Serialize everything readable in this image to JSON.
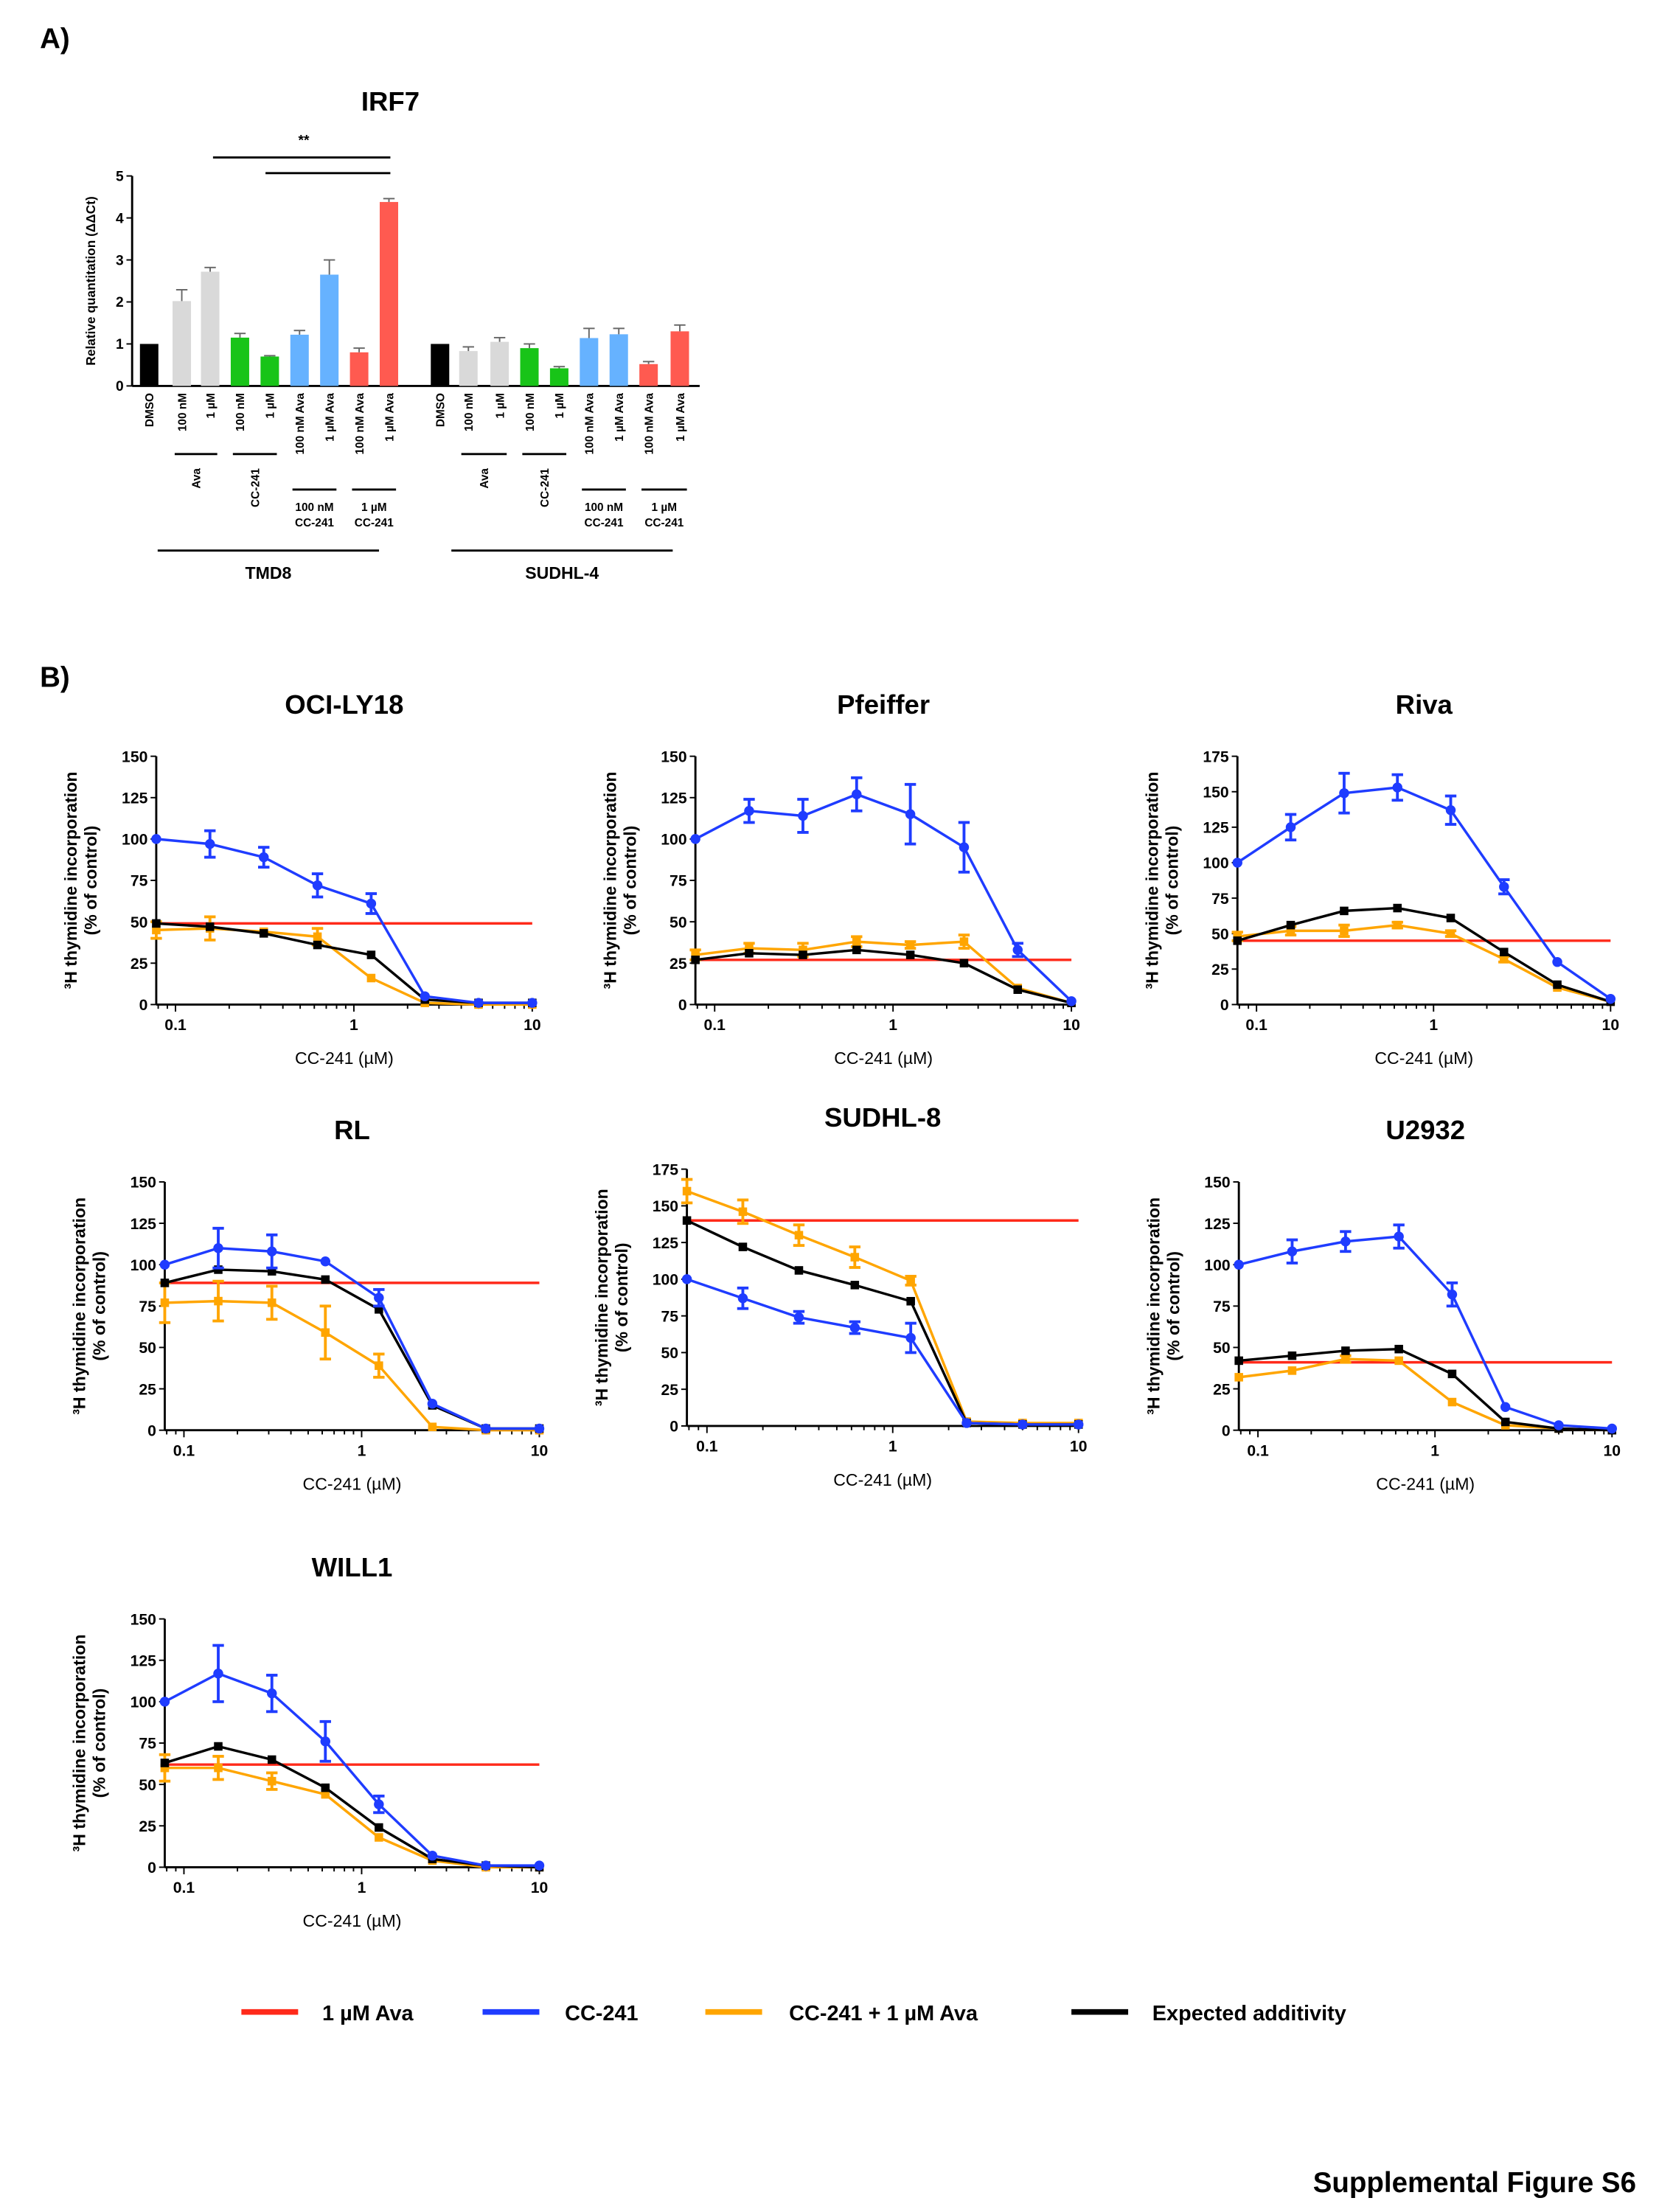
{
  "panel_labels": {
    "a": "A)",
    "b": "B)"
  },
  "footer": "Supplemental Figure S6",
  "legend": [
    {
      "label": "1 µM Ava",
      "color": "#ff2a1a"
    },
    {
      "label": "CC-241",
      "color": "#1f3cff"
    },
    {
      "label": "CC-241 + 1 µM Ava",
      "color": "#ffa500"
    },
    {
      "label": "Expected additivity",
      "color": "#000000"
    }
  ],
  "chart_data": [
    {
      "type": "bar",
      "title": "IRF7",
      "ylabel": "Relative quantitation (ΔΔCt)",
      "ylim": [
        0,
        5
      ],
      "yticks": [
        0,
        1,
        2,
        3,
        4,
        5
      ],
      "significance": "**",
      "groups": [
        {
          "name": "TMD8",
          "bars": [
            {
              "label": "DMSO",
              "value": 1.0,
              "error": 0,
              "color": "#000000"
            },
            {
              "label": "100 nM",
              "value": 2.02,
              "error": 0.27,
              "color": "#d9d9d9"
            },
            {
              "label": "1 µM",
              "value": 2.72,
              "error": 0.1,
              "color": "#d9d9d9"
            },
            {
              "label": "100 nM",
              "value": 1.15,
              "error": 0.1,
              "color": "#18c418"
            },
            {
              "label": "1 µM",
              "value": 0.7,
              "error": 0.02,
              "color": "#18c418"
            },
            {
              "label": "100 nM Ava",
              "value": 1.22,
              "error": 0.1,
              "color": "#66b2ff"
            },
            {
              "label": "1 µM Ava",
              "value": 2.65,
              "error": 0.35,
              "color": "#66b2ff"
            },
            {
              "label": "100 nM Ava",
              "value": 0.8,
              "error": 0.1,
              "color": "#ff5a50"
            },
            {
              "label": "1 µM Ava",
              "value": 4.38,
              "error": 0.08,
              "color": "#ff5a50"
            }
          ]
        },
        {
          "name": "SUDHL-4",
          "bars": [
            {
              "label": "DMSO",
              "value": 1.0,
              "error": 0,
              "color": "#000000"
            },
            {
              "label": "100 nM",
              "value": 0.83,
              "error": 0.1,
              "color": "#d9d9d9"
            },
            {
              "label": "1 µM",
              "value": 1.05,
              "error": 0.1,
              "color": "#d9d9d9"
            },
            {
              "label": "100 nM",
              "value": 0.9,
              "error": 0.1,
              "color": "#18c418"
            },
            {
              "label": "1 µM",
              "value": 0.42,
              "error": 0.04,
              "color": "#18c418"
            },
            {
              "label": "100 nM Ava",
              "value": 1.14,
              "error": 0.23,
              "color": "#66b2ff"
            },
            {
              "label": "1 µM Ava",
              "value": 1.23,
              "error": 0.14,
              "color": "#66b2ff"
            },
            {
              "label": "100 nM Ava",
              "value": 0.52,
              "error": 0.06,
              "color": "#ff5a50"
            },
            {
              "label": "1 µM Ava",
              "value": 1.3,
              "error": 0.15,
              "color": "#ff5a50"
            }
          ]
        }
      ],
      "subgroups": [
        {
          "label": "Ava",
          "bars": [
            1,
            2
          ],
          "rotated": true
        },
        {
          "label": "CC-241",
          "bars": [
            3,
            4
          ],
          "rotated": true
        },
        {
          "label": "100 nM\nCC-241",
          "bars": [
            5,
            6
          ],
          "rotated": false
        },
        {
          "label": "1 µM\nCC-241",
          "bars": [
            7,
            8
          ],
          "rotated": false
        }
      ]
    },
    {
      "type": "line",
      "title": "OCI-LY18",
      "xlabel": "CC-241 (µM)",
      "ylabel": [
        "³H thymidine incorporation",
        "(% of control)"
      ],
      "xscale": "log",
      "xlim": [
        0.078,
        10
      ],
      "xticks": [
        0.1,
        1,
        10
      ],
      "ylim": [
        0,
        150
      ],
      "yticks": [
        0,
        25,
        50,
        75,
        100,
        125,
        150
      ],
      "x": [
        0.078,
        0.156,
        0.3125,
        0.625,
        1.25,
        2.5,
        5,
        10
      ],
      "reference": {
        "name": "1 µM Ava",
        "value": 49
      },
      "series": [
        {
          "name": "CC-241",
          "values": [
            100,
            97,
            89,
            72,
            61,
            5,
            1,
            1
          ],
          "errors": [
            0,
            8,
            6,
            7,
            6,
            0,
            0,
            0
          ]
        },
        {
          "name": "CC-241 + 1 µM Ava",
          "values": [
            45,
            46,
            44,
            41,
            16,
            1,
            0,
            0
          ],
          "errors": [
            5,
            7,
            0,
            5,
            0,
            0,
            0,
            0
          ]
        },
        {
          "name": "Expected additivity",
          "values": [
            49,
            47,
            43,
            36,
            30,
            3,
            1,
            1
          ],
          "errors": [
            0,
            0,
            0,
            0,
            0,
            0,
            0,
            0
          ]
        }
      ]
    },
    {
      "type": "line",
      "title": "Pfeiffer",
      "xlabel": "CC-241 (µM)",
      "ylabel": [
        "³H thymidine incorporation",
        "(% of control)"
      ],
      "xscale": "log",
      "xlim": [
        0.078,
        10
      ],
      "xticks": [
        0.1,
        1,
        10
      ],
      "ylim": [
        0,
        150
      ],
      "yticks": [
        0,
        25,
        50,
        75,
        100,
        125,
        150
      ],
      "x": [
        0.078,
        0.156,
        0.3125,
        0.625,
        1.25,
        2.5,
        5,
        10
      ],
      "reference": {
        "name": "1 µM Ava",
        "value": 27
      },
      "series": [
        {
          "name": "CC-241",
          "values": [
            100,
            117,
            114,
            127,
            115,
            95,
            33,
            2
          ],
          "errors": [
            0,
            7,
            10,
            10,
            18,
            15,
            4,
            0
          ]
        },
        {
          "name": "CC-241 + 1 µM Ava",
          "values": [
            30,
            34,
            33,
            38,
            36,
            38,
            10,
            1
          ],
          "errors": [
            3,
            3,
            4,
            3,
            2,
            4,
            0,
            0
          ]
        },
        {
          "name": "Expected additivity",
          "values": [
            27,
            31,
            30,
            33,
            30,
            25,
            9,
            1
          ],
          "errors": [
            0,
            0,
            0,
            0,
            0,
            0,
            0,
            0
          ]
        }
      ]
    },
    {
      "type": "line",
      "title": "Riva",
      "xlabel": "CC-241 (µM)",
      "ylabel": [
        "³H thymidine incorporation",
        "(% of control)"
      ],
      "xscale": "log",
      "xlim": [
        0.078,
        10
      ],
      "xticks": [
        0.1,
        1,
        10
      ],
      "ylim": [
        0,
        175
      ],
      "yticks": [
        0,
        25,
        50,
        75,
        100,
        125,
        150,
        175
      ],
      "x": [
        0.078,
        0.156,
        0.3125,
        0.625,
        1.25,
        2.5,
        5,
        10
      ],
      "reference": {
        "name": "1 µM Ava",
        "value": 45
      },
      "series": [
        {
          "name": "CC-241",
          "values": [
            100,
            125,
            149,
            153,
            137,
            83,
            30,
            4
          ],
          "errors": [
            0,
            9,
            14,
            9,
            10,
            5,
            0,
            0
          ]
        },
        {
          "name": "CC-241 + 1 µM Ava",
          "values": [
            48,
            52,
            52,
            56,
            50,
            32,
            12,
            2
          ],
          "errors": [
            3,
            3,
            4,
            2,
            2,
            2,
            0,
            0
          ]
        },
        {
          "name": "Expected additivity",
          "values": [
            45,
            56,
            66,
            68,
            61,
            37,
            14,
            2
          ],
          "errors": [
            0,
            0,
            0,
            0,
            0,
            0,
            0,
            0
          ]
        }
      ]
    },
    {
      "type": "line",
      "title": "RL",
      "xlabel": "CC-241 (µM)",
      "ylabel": [
        "³H thymidine incorporation",
        "(% of control)"
      ],
      "xscale": "log",
      "xlim": [
        0.078,
        10
      ],
      "xticks": [
        0.1,
        1,
        10
      ],
      "ylim": [
        0,
        150
      ],
      "yticks": [
        0,
        25,
        50,
        75,
        100,
        125,
        150
      ],
      "x": [
        0.078,
        0.156,
        0.3125,
        0.625,
        1.25,
        2.5,
        5,
        10
      ],
      "reference": {
        "name": "1 µM Ava",
        "value": 89
      },
      "series": [
        {
          "name": "CC-241",
          "values": [
            100,
            110,
            108,
            102,
            80,
            16,
            1,
            1
          ],
          "errors": [
            0,
            12,
            10,
            0,
            5,
            0,
            0,
            0
          ]
        },
        {
          "name": "CC-241 + 1 µM Ava",
          "values": [
            77,
            78,
            77,
            59,
            39,
            2,
            0,
            0
          ],
          "errors": [
            12,
            12,
            10,
            16,
            7,
            0,
            0,
            0
          ]
        },
        {
          "name": "Expected additivity",
          "values": [
            89,
            97,
            96,
            91,
            73,
            15,
            1,
            1
          ],
          "errors": [
            0,
            0,
            0,
            0,
            0,
            0,
            0,
            0
          ]
        }
      ]
    },
    {
      "type": "line",
      "title": "SUDHL-8",
      "xlabel": "CC-241 (µM)",
      "ylabel": [
        "³H thymidine incorporation",
        "(% of control)"
      ],
      "xscale": "log",
      "xlim": [
        0.078,
        10
      ],
      "xticks": [
        0.1,
        1,
        10
      ],
      "ylim": [
        0,
        175
      ],
      "yticks": [
        0,
        25,
        50,
        75,
        100,
        125,
        150,
        175
      ],
      "x": [
        0.078,
        0.156,
        0.3125,
        0.625,
        1.25,
        2.5,
        5,
        10
      ],
      "reference": {
        "name": "1 µM Ava",
        "value": 140
      },
      "series": [
        {
          "name": "CC-241",
          "values": [
            100,
            87,
            74,
            67,
            60,
            2,
            1,
            1
          ],
          "errors": [
            0,
            7,
            4,
            4,
            10,
            0,
            0,
            0
          ]
        },
        {
          "name": "CC-241 + 1 µM Ava",
          "values": [
            160,
            146,
            130,
            115,
            99,
            3,
            2,
            2
          ],
          "errors": [
            8,
            8,
            7,
            7,
            3,
            0,
            0,
            0
          ]
        },
        {
          "name": "Expected additivity",
          "values": [
            140,
            122,
            106,
            96,
            85,
            2,
            1,
            1
          ],
          "errors": [
            0,
            0,
            0,
            0,
            0,
            0,
            0,
            0
          ]
        }
      ]
    },
    {
      "type": "line",
      "title": "U2932",
      "xlabel": "CC-241 (µM)",
      "ylabel": [
        "³H thymidine incorporation",
        "(% of control)"
      ],
      "xscale": "log",
      "xlim": [
        0.078,
        10
      ],
      "xticks": [
        0.1,
        1,
        10
      ],
      "ylim": [
        0,
        150
      ],
      "yticks": [
        0,
        25,
        50,
        75,
        100,
        125,
        150
      ],
      "x": [
        0.078,
        0.156,
        0.3125,
        0.625,
        1.25,
        2.5,
        5,
        10
      ],
      "reference": {
        "name": "1 µM Ava",
        "value": 41
      },
      "series": [
        {
          "name": "CC-241",
          "values": [
            100,
            108,
            114,
            117,
            82,
            14,
            3,
            1
          ],
          "errors": [
            0,
            7,
            6,
            7,
            7,
            0,
            0,
            0
          ]
        },
        {
          "name": "CC-241 + 1 µM Ava",
          "values": [
            32,
            36,
            43,
            42,
            17,
            3,
            1,
            0
          ],
          "errors": [
            0,
            0,
            2,
            0,
            0,
            0,
            0,
            0
          ]
        },
        {
          "name": "Expected additivity",
          "values": [
            42,
            45,
            48,
            49,
            34,
            5,
            1,
            0
          ],
          "errors": [
            0,
            0,
            0,
            0,
            0,
            0,
            0,
            0
          ]
        }
      ]
    },
    {
      "type": "line",
      "title": "WILL1",
      "xlabel": "CC-241 (µM)",
      "ylabel": [
        "³H thymidine incorporation",
        "(% of control)"
      ],
      "xscale": "log",
      "xlim": [
        0.078,
        10
      ],
      "xticks": [
        0.1,
        1,
        10
      ],
      "ylim": [
        0,
        150
      ],
      "yticks": [
        0,
        25,
        50,
        75,
        100,
        125,
        150
      ],
      "x": [
        0.078,
        0.156,
        0.3125,
        0.625,
        1.25,
        2.5,
        5,
        10
      ],
      "reference": {
        "name": "1 µM Ava",
        "value": 62
      },
      "series": [
        {
          "name": "CC-241",
          "values": [
            100,
            117,
            105,
            76,
            38,
            7,
            1,
            1
          ],
          "errors": [
            0,
            17,
            11,
            12,
            5,
            0,
            0,
            0
          ]
        },
        {
          "name": "CC-241 + 1 µM Ava",
          "values": [
            60,
            60,
            52,
            44,
            18,
            4,
            0,
            0
          ],
          "errors": [
            8,
            7,
            5,
            0,
            0,
            0,
            0,
            0
          ]
        },
        {
          "name": "Expected additivity",
          "values": [
            63,
            73,
            65,
            48,
            24,
            5,
            1,
            0
          ],
          "errors": [
            0,
            0,
            0,
            0,
            0,
            0,
            0,
            0
          ]
        }
      ]
    }
  ]
}
